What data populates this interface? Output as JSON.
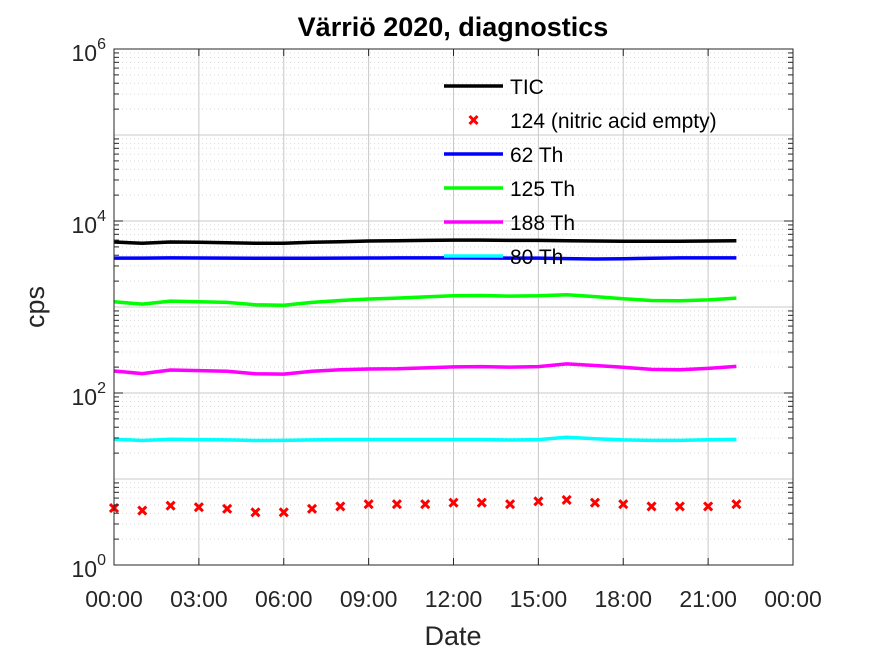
{
  "chart_data": {
    "type": "line",
    "title": "Värriö 2020, diagnostics",
    "xlabel": "Date",
    "ylabel": "cps",
    "yscale": "log",
    "ylim": [
      1,
      1000000
    ],
    "xlim": [
      "00:00",
      "24:00"
    ],
    "grid": true,
    "legend_position": "top-right (inside axes)",
    "x_ticks": [
      "00:00",
      "03:00",
      "06:00",
      "09:00",
      "12:00",
      "15:00",
      "18:00",
      "21:00",
      "00:00"
    ],
    "y_ticks": [
      {
        "base": "10",
        "exp": "0",
        "value": 1
      },
      {
        "base": "10",
        "exp": "2",
        "value": 100
      },
      {
        "base": "10",
        "exp": "4",
        "value": 10000
      },
      {
        "base": "10",
        "exp": "6",
        "value": 1000000
      }
    ],
    "x_hours": [
      0,
      1,
      2,
      3,
      4,
      5,
      6,
      7,
      8,
      9,
      10,
      11,
      12,
      13,
      14,
      15,
      16,
      17,
      18,
      19,
      20,
      21,
      22
    ],
    "series": [
      {
        "name": "TIC",
        "style": "line",
        "color": "#000000",
        "values": [
          5700,
          5500,
          5700,
          5650,
          5600,
          5500,
          5500,
          5650,
          5750,
          5850,
          5900,
          5950,
          6000,
          6000,
          5950,
          5950,
          5900,
          5850,
          5800,
          5800,
          5800,
          5850,
          5900
        ]
      },
      {
        "name": "124 (nitric acid empty)",
        "style": "marker-x",
        "color": "#ff0000",
        "values": [
          4.6,
          4.3,
          4.9,
          4.7,
          4.5,
          4.1,
          4.1,
          4.5,
          4.8,
          5.1,
          5.1,
          5.1,
          5.3,
          5.3,
          5.1,
          5.5,
          5.7,
          5.3,
          5.1,
          4.8,
          4.8,
          4.8,
          5.1
        ]
      },
      {
        "name": "62 Th",
        "style": "line",
        "color": "#0000ff",
        "values": [
          3700,
          3700,
          3720,
          3710,
          3700,
          3690,
          3680,
          3690,
          3700,
          3710,
          3720,
          3720,
          3720,
          3710,
          3700,
          3700,
          3650,
          3620,
          3640,
          3680,
          3720,
          3720,
          3720
        ]
      },
      {
        "name": "125 Th",
        "style": "line",
        "color": "#00ff00",
        "values": [
          1150,
          1080,
          1170,
          1150,
          1130,
          1060,
          1050,
          1130,
          1190,
          1240,
          1270,
          1310,
          1350,
          1360,
          1340,
          1350,
          1390,
          1320,
          1250,
          1190,
          1180,
          1210,
          1270
        ]
      },
      {
        "name": "188 Th",
        "style": "line",
        "color": "#ff00ff",
        "values": [
          180,
          168,
          185,
          182,
          179,
          167,
          166,
          179,
          186,
          190,
          191,
          196,
          201,
          203,
          200,
          203,
          218,
          209,
          199,
          188,
          186,
          193,
          204
        ]
      },
      {
        "name": "80 Th",
        "style": "line",
        "color": "#00ffff",
        "values": [
          29,
          28,
          29,
          28.7,
          28.5,
          28,
          28.1,
          28.5,
          28.8,
          28.8,
          28.8,
          28.8,
          28.8,
          28.8,
          28.4,
          28.7,
          30.6,
          29.4,
          28.5,
          28.1,
          28.1,
          28.6,
          28.9
        ]
      }
    ]
  }
}
